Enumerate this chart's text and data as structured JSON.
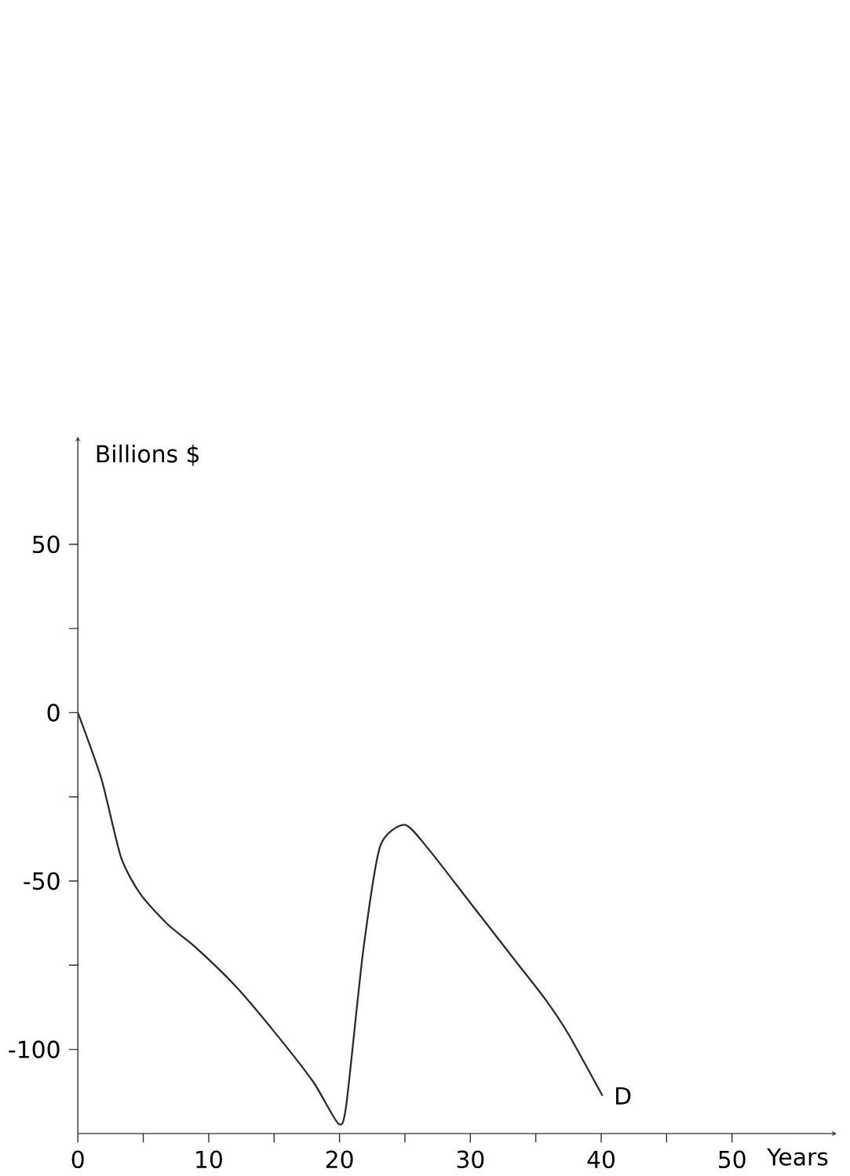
{
  "chart_data": {
    "type": "line",
    "xlabel": "Years",
    "ylabel": "Billions $",
    "xlim": [
      0,
      58
    ],
    "ylim": [
      -125,
      82
    ],
    "xticks": [
      0,
      {
        "value": 5,
        "label": null
      },
      10,
      {
        "value": 15,
        "label": null
      },
      20,
      {
        "value": 25,
        "label": null
      },
      30,
      {
        "value": 35,
        "label": null
      },
      40,
      {
        "value": 45,
        "label": null
      },
      50
    ],
    "yticks": [
      -100,
      {
        "value": -75,
        "label": null
      },
      -50,
      {
        "value": -25,
        "label": null
      },
      0,
      {
        "value": 25,
        "label": null
      },
      50
    ],
    "series": [
      {
        "color": "#2b2b2b",
        "x": [
          0,
          1.8,
          3.3,
          4.8,
          6.9,
          9.0,
          12,
          15,
          18,
          19.9,
          20.5,
          21.8,
          23.1,
          25,
          26.9,
          29.9,
          33.3,
          35.8,
          37.5,
          40.1
        ],
        "values": [
          0,
          -19.7,
          -43,
          -54,
          -63,
          -69.7,
          -81,
          -94.7,
          -109.7,
          -122,
          -117,
          -71,
          -39.7,
          -33.3,
          -41,
          -56,
          -73,
          -85.5,
          -95.5,
          -113.8
        ]
      }
    ],
    "annotations": [
      {
        "text": "D",
        "x": 40.1,
        "y": -113.8
      }
    ],
    "marker": "none",
    "line_style": "solid"
  }
}
